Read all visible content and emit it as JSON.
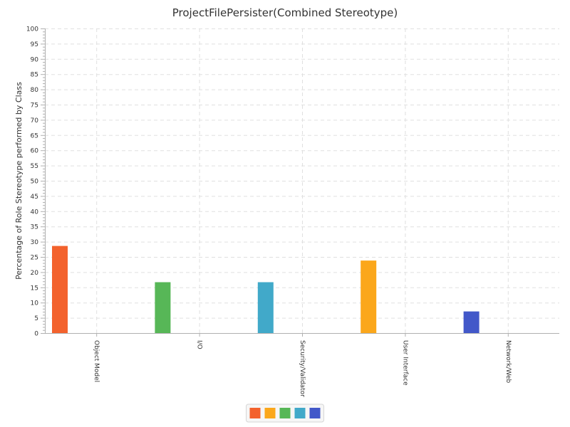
{
  "chart_data": {
    "type": "bar",
    "title": "ProjectFilePersister(Combined Stereotype)",
    "xlabel": "",
    "ylabel": "Percentage of Role Stereotype performed by Class",
    "ylim": [
      0,
      100
    ],
    "ytick_step": 5,
    "grid": true,
    "legend_position": "bottom",
    "categories": [
      "Object Model",
      "I/O",
      "Security/Validator",
      "User Interface",
      "Network/Web"
    ],
    "values": [
      28.6,
      16.7,
      16.7,
      23.8,
      7.1
    ],
    "colors": [
      "#f3622d",
      "#57b757",
      "#41a9c9",
      "#fba71b",
      "#4258c9"
    ],
    "legend_colors": [
      "#f3622d",
      "#fba71b",
      "#57b757",
      "#41a9c9",
      "#4258c9"
    ]
  }
}
